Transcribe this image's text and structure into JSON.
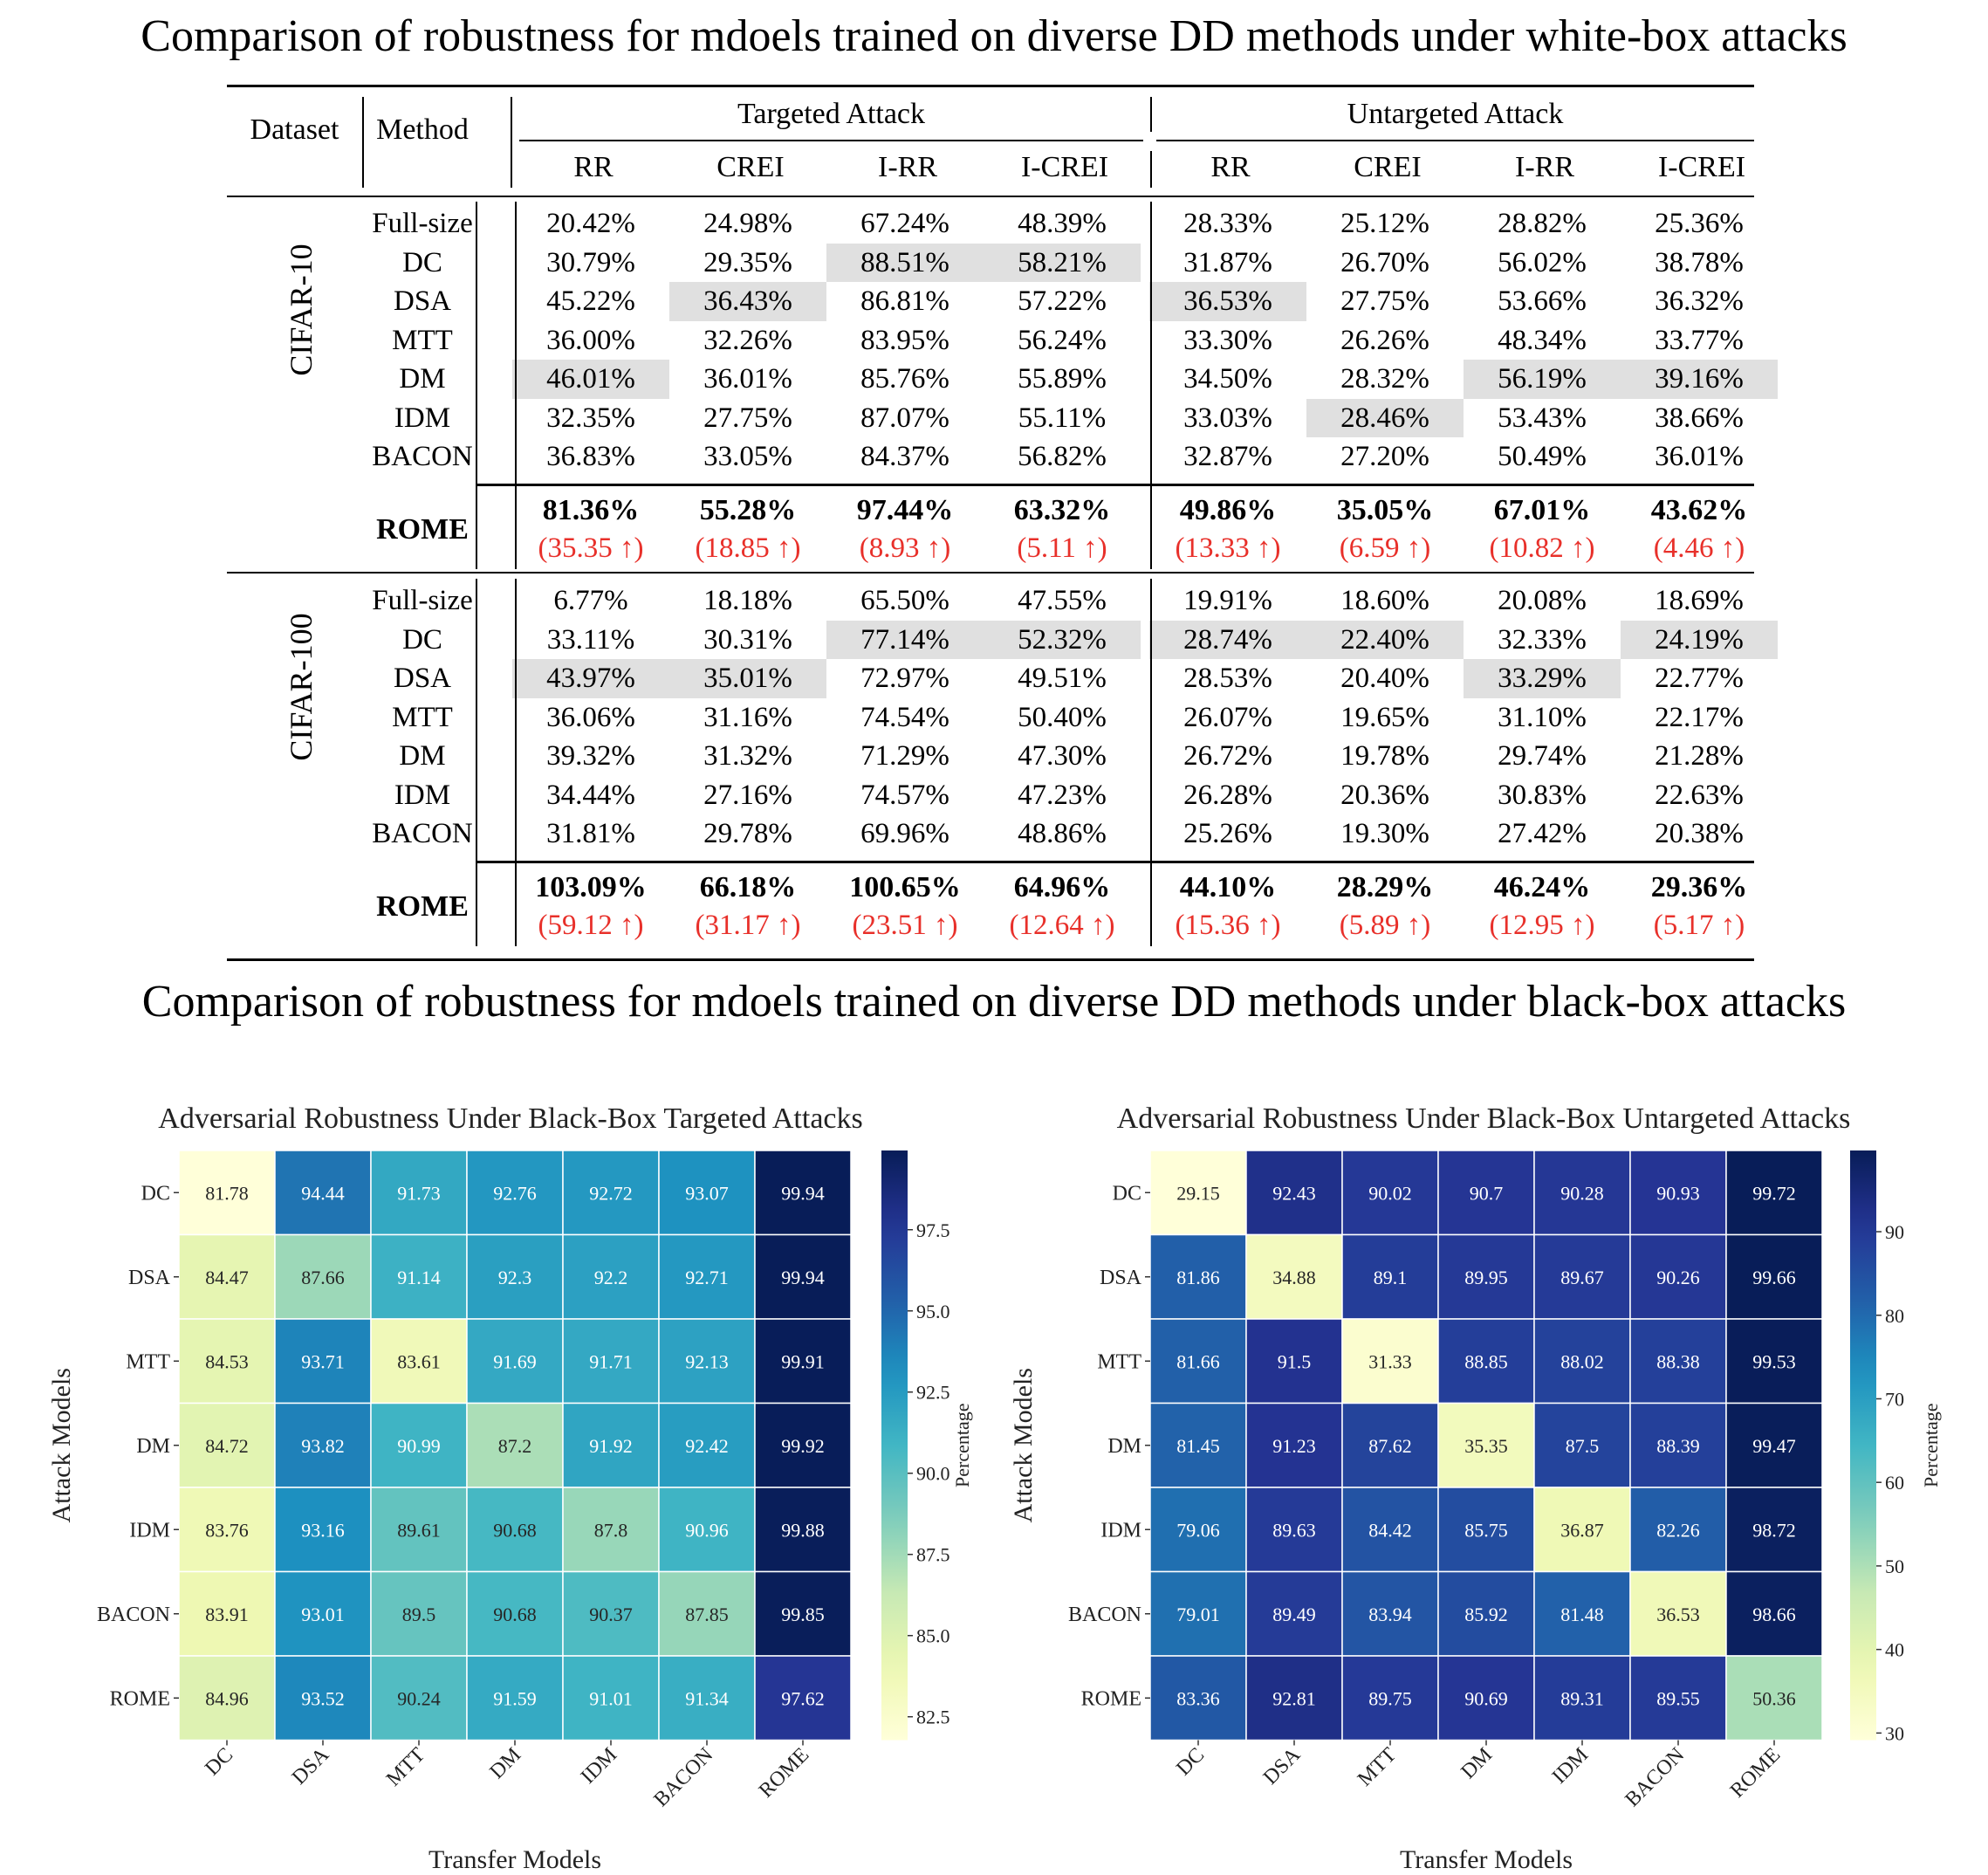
{
  "titles": {
    "white_box": "Comparison of robustness for mdoels trained on diverse DD methods under white-box attacks",
    "black_box": "Comparison of robustness for mdoels trained on diverse DD methods under black-box attacks"
  },
  "chart_data": [
    {
      "type": "table",
      "header": {
        "dataset": "Dataset",
        "method": "Method",
        "groups": [
          "Targeted Attack",
          "Untargeted Attack"
        ],
        "columns": [
          "RR",
          "CREI",
          "I-RR",
          "I-CREI",
          "RR",
          "CREI",
          "I-RR",
          "I-CREI"
        ]
      },
      "blocks": [
        {
          "dataset": "CIFAR-10",
          "rows": [
            {
              "method": "Full-size",
              "values": [
                "20.42%",
                "24.98%",
                "67.24%",
                "48.39%",
                "28.33%",
                "25.12%",
                "28.82%",
                "25.36%"
              ],
              "highlight": []
            },
            {
              "method": "DC",
              "values": [
                "30.79%",
                "29.35%",
                "88.51%",
                "58.21%",
                "31.87%",
                "26.70%",
                "56.02%",
                "38.78%"
              ],
              "highlight": [
                2,
                3
              ]
            },
            {
              "method": "DSA",
              "values": [
                "45.22%",
                "36.43%",
                "86.81%",
                "57.22%",
                "36.53%",
                "27.75%",
                "53.66%",
                "36.32%"
              ],
              "highlight": [
                1,
                4
              ]
            },
            {
              "method": "MTT",
              "values": [
                "36.00%",
                "32.26%",
                "83.95%",
                "56.24%",
                "33.30%",
                "26.26%",
                "48.34%",
                "33.77%"
              ],
              "highlight": []
            },
            {
              "method": "DM",
              "values": [
                "46.01%",
                "36.01%",
                "85.76%",
                "55.89%",
                "34.50%",
                "28.32%",
                "56.19%",
                "39.16%"
              ],
              "highlight": [
                0,
                6,
                7
              ]
            },
            {
              "method": "IDM",
              "values": [
                "32.35%",
                "27.75%",
                "87.07%",
                "55.11%",
                "33.03%",
                "28.46%",
                "53.43%",
                "38.66%"
              ],
              "highlight": [
                5
              ]
            },
            {
              "method": "BACON",
              "values": [
                "36.83%",
                "33.05%",
                "84.37%",
                "56.82%",
                "32.87%",
                "27.20%",
                "50.49%",
                "36.01%"
              ],
              "highlight": []
            }
          ],
          "rome": {
            "method": "ROME",
            "values": [
              "81.36%",
              "55.28%",
              "97.44%",
              "63.32%",
              "49.86%",
              "35.05%",
              "67.01%",
              "43.62%"
            ],
            "gains": [
              "(35.35 ↑)",
              "(18.85 ↑)",
              "(8.93 ↑)",
              "(5.11 ↑)",
              "(13.33 ↑)",
              "(6.59 ↑)",
              "(10.82 ↑)",
              "(4.46 ↑)"
            ]
          }
        },
        {
          "dataset": "CIFAR-100",
          "rows": [
            {
              "method": "Full-size",
              "values": [
                "6.77%",
                "18.18%",
                "65.50%",
                "47.55%",
                "19.91%",
                "18.60%",
                "20.08%",
                "18.69%"
              ],
              "highlight": []
            },
            {
              "method": "DC",
              "values": [
                "33.11%",
                "30.31%",
                "77.14%",
                "52.32%",
                "28.74%",
                "22.40%",
                "32.33%",
                "24.19%"
              ],
              "highlight": [
                2,
                3,
                4,
                5,
                7
              ]
            },
            {
              "method": "DSA",
              "values": [
                "43.97%",
                "35.01%",
                "72.97%",
                "49.51%",
                "28.53%",
                "20.40%",
                "33.29%",
                "22.77%"
              ],
              "highlight": [
                0,
                1,
                6
              ]
            },
            {
              "method": "MTT",
              "values": [
                "36.06%",
                "31.16%",
                "74.54%",
                "50.40%",
                "26.07%",
                "19.65%",
                "31.10%",
                "22.17%"
              ],
              "highlight": []
            },
            {
              "method": "DM",
              "values": [
                "39.32%",
                "31.32%",
                "71.29%",
                "47.30%",
                "26.72%",
                "19.78%",
                "29.74%",
                "21.28%"
              ],
              "highlight": []
            },
            {
              "method": "IDM",
              "values": [
                "34.44%",
                "27.16%",
                "74.57%",
                "47.23%",
                "26.28%",
                "20.36%",
                "30.83%",
                "22.63%"
              ],
              "highlight": []
            },
            {
              "method": "BACON",
              "values": [
                "31.81%",
                "29.78%",
                "69.96%",
                "48.86%",
                "25.26%",
                "19.30%",
                "27.42%",
                "20.38%"
              ],
              "highlight": []
            }
          ],
          "rome": {
            "method": "ROME",
            "values": [
              "103.09%",
              "66.18%",
              "100.65%",
              "64.96%",
              "44.10%",
              "28.29%",
              "46.24%",
              "29.36%"
            ],
            "gains": [
              "(59.12 ↑)",
              "(31.17 ↑)",
              "(23.51 ↑)",
              "(12.64 ↑)",
              "(15.36 ↑)",
              "(5.89 ↑)",
              "(12.95 ↑)",
              "(5.17 ↑)"
            ]
          }
        }
      ],
      "highlight_color": "#e0e0e0",
      "gain_color": "#e8302a"
    },
    {
      "type": "heatmap",
      "title": "Adversarial Robustness Under Black-Box Targeted Attacks",
      "xlabel": "Transfer Models",
      "ylabel": "Attack Models",
      "colorbar_label": "Percentage",
      "x": [
        "DC",
        "DSA",
        "MTT",
        "DM",
        "IDM",
        "BACON",
        "ROME"
      ],
      "y": [
        "DC",
        "DSA",
        "MTT",
        "DM",
        "IDM",
        "BACON",
        "ROME"
      ],
      "values": [
        [
          81.78,
          94.44,
          91.73,
          92.76,
          92.72,
          93.07,
          99.94
        ],
        [
          84.47,
          87.66,
          91.14,
          92.3,
          92.2,
          92.71,
          99.94
        ],
        [
          84.53,
          93.71,
          83.61,
          91.69,
          91.71,
          92.13,
          99.91
        ],
        [
          84.72,
          93.82,
          90.99,
          87.2,
          91.92,
          92.42,
          99.92
        ],
        [
          83.76,
          93.16,
          89.61,
          90.68,
          87.8,
          90.96,
          99.88
        ],
        [
          83.91,
          93.01,
          89.5,
          90.68,
          90.37,
          87.85,
          99.85
        ],
        [
          84.96,
          93.52,
          90.24,
          91.59,
          91.01,
          91.34,
          97.62
        ]
      ],
      "colorbar_range": [
        81.78,
        99.94
      ],
      "colorbar_ticks": [
        82.5,
        85.0,
        87.5,
        90.0,
        92.5,
        95.0,
        97.5
      ],
      "colormap": "YlGnBu"
    },
    {
      "type": "heatmap",
      "title": "Adversarial Robustness Under Black-Box Untargeted Attacks",
      "xlabel": "Transfer Models",
      "ylabel": "Attack Models",
      "colorbar_label": "Percentage",
      "x": [
        "DC",
        "DSA",
        "MTT",
        "DM",
        "IDM",
        "BACON",
        "ROME"
      ],
      "y": [
        "DC",
        "DSA",
        "MTT",
        "DM",
        "IDM",
        "BACON",
        "ROME"
      ],
      "values": [
        [
          29.15,
          92.43,
          90.02,
          90.7,
          90.28,
          90.93,
          99.72
        ],
        [
          81.86,
          34.88,
          89.1,
          89.95,
          89.67,
          90.26,
          99.66
        ],
        [
          81.66,
          91.5,
          31.33,
          88.85,
          88.02,
          88.38,
          99.53
        ],
        [
          81.45,
          91.23,
          87.62,
          35.35,
          87.5,
          88.39,
          99.47
        ],
        [
          79.06,
          89.63,
          84.42,
          85.75,
          36.87,
          82.26,
          98.72
        ],
        [
          79.01,
          89.49,
          83.94,
          85.92,
          81.48,
          36.53,
          98.66
        ],
        [
          83.36,
          92.81,
          89.75,
          90.69,
          89.31,
          89.55,
          50.36
        ]
      ],
      "colorbar_range": [
        29.15,
        99.72
      ],
      "colorbar_ticks": [
        30,
        40,
        50,
        60,
        70,
        80,
        90
      ],
      "colormap": "YlGnBu"
    }
  ]
}
